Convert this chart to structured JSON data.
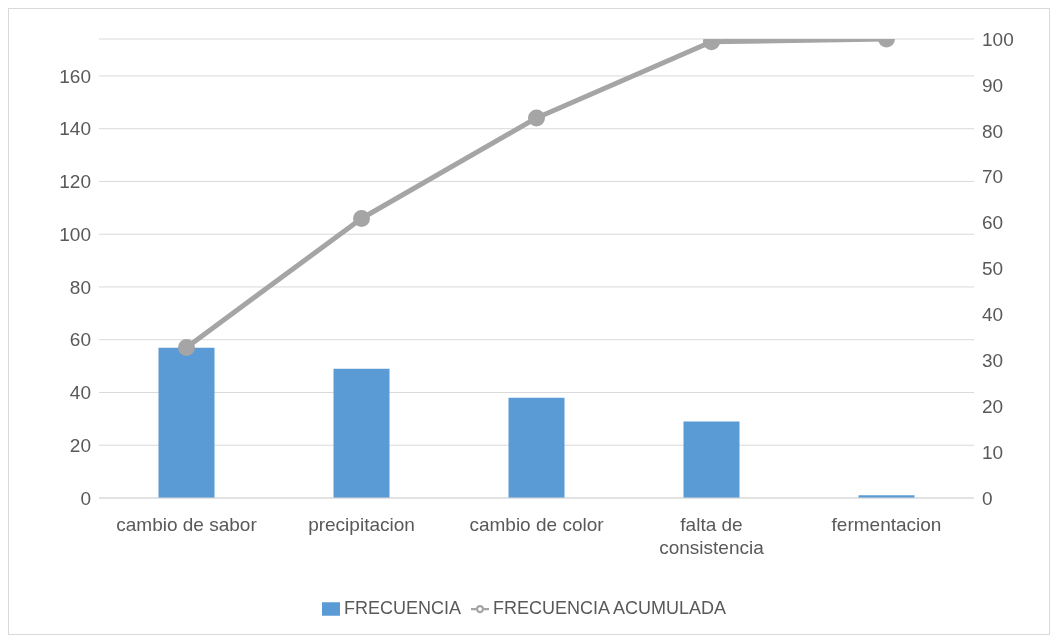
{
  "chart_data": {
    "type": "bar",
    "categories": [
      "cambio de sabor",
      "precipitacion",
      "cambio de color",
      "falta de consistencia",
      "fermentacion"
    ],
    "series": [
      {
        "name": "FRECUENCIA",
        "color": "#5b9bd5",
        "values": [
          57,
          49,
          38,
          29,
          1
        ]
      },
      {
        "name": "FRECUENCIA ACUMULADA",
        "type": "line",
        "axis": "y2",
        "color": "#a5a5a5",
        "values": [
          32.8,
          60.9,
          82.8,
          99.4,
          100
        ]
      }
    ],
    "ylim": [
      0,
      174
    ],
    "yticks": [
      0,
      20,
      40,
      60,
      80,
      100,
      120,
      140,
      160
    ],
    "y2lim": [
      0,
      100
    ],
    "y2ticks": [
      0,
      10,
      20,
      30,
      40,
      50,
      60,
      70,
      80,
      90,
      100
    ],
    "grid": "y",
    "legend": "bottom",
    "marker": "circle"
  }
}
